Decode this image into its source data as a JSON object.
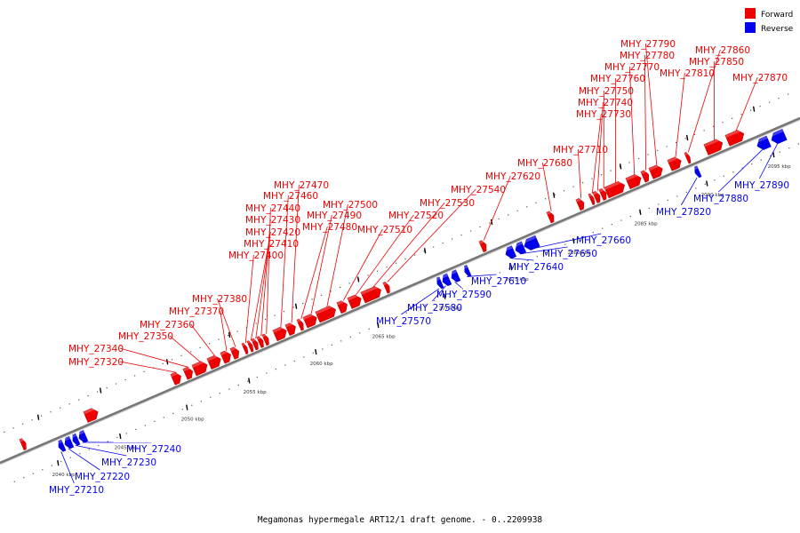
{
  "caption": "Megamonas hypermegale ART12/1 draft genome. - 0..2209938",
  "colors": {
    "forward": "#ee0000",
    "reverse": "#0000ee",
    "backbone": "#777777"
  },
  "legend": [
    {
      "label": "Forward",
      "color": "#ee0000"
    },
    {
      "label": "Reverse",
      "color": "#0000ee"
    }
  ],
  "scale_ticks": [
    "2040 kbp",
    "2045 kbp",
    "2050 kbp",
    "2055 kbp",
    "2060 kbp",
    "2065 kbp",
    "2070 kbp",
    "2075 kbp",
    "2080 kbp",
    "2085 kbp",
    "2090 kbp",
    "2095 kbp"
  ],
  "forward_genes": [
    "MHY_27320",
    "MHY_27340",
    "MHY_27350",
    "MHY_27360",
    "MHY_27370",
    "MHY_27380",
    "MHY_27400",
    "MHY_27410",
    "MHY_27420",
    "MHY_27430",
    "MHY_27440",
    "MHY_27460",
    "MHY_27470",
    "MHY_27480",
    "MHY_27490",
    "MHY_27500",
    "MHY_27510",
    "MHY_27520",
    "MHY_27530",
    "MHY_27540",
    "MHY_27620",
    "MHY_27680",
    "MHY_27710",
    "MHY_27730",
    "MHY_27740",
    "MHY_27750",
    "MHY_27760",
    "MHY_27770",
    "MHY_27780",
    "MHY_27790",
    "MHY_27810",
    "MHY_27850",
    "MHY_27860",
    "MHY_27870"
  ],
  "reverse_genes": [
    "MHY_27210",
    "MHY_27220",
    "MHY_27230",
    "MHY_27240",
    "MHY_27570",
    "MHY_27580",
    "MHY_27590",
    "MHY_27610",
    "MHY_27640",
    "MHY_27650",
    "MHY_27660",
    "MHY_27820",
    "MHY_27880",
    "MHY_27890"
  ]
}
